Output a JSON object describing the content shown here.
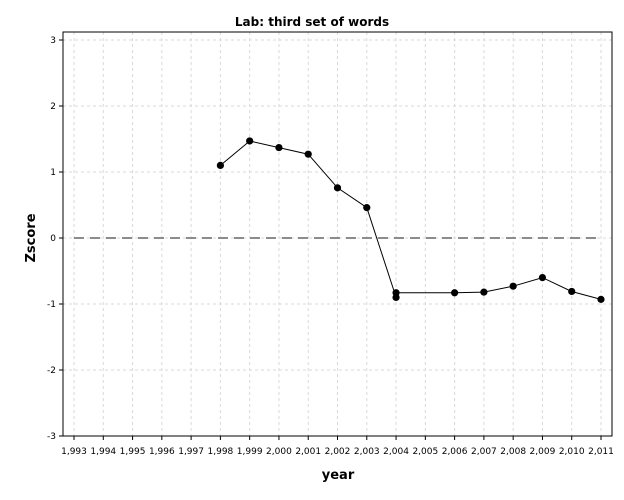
{
  "chart_data": {
    "type": "line",
    "title": "Lab: third set of words",
    "xlabel": "year",
    "ylabel": "Zscore",
    "xlim": [
      1993,
      2011
    ],
    "ylim": [
      -3,
      3
    ],
    "x_ticks": [
      1993,
      1994,
      1995,
      1996,
      1997,
      1998,
      1999,
      2000,
      2001,
      2002,
      2003,
      2004,
      2005,
      2006,
      2007,
      2008,
      2009,
      2010,
      2011
    ],
    "x_tick_labels": [
      "1,993",
      "1,994",
      "1,995",
      "1,996",
      "1,997",
      "1,998",
      "1,999",
      "2,000",
      "2,001",
      "2,002",
      "2,003",
      "2,004",
      "2,005",
      "2,006",
      "2,007",
      "2,008",
      "2,009",
      "2,010",
      "2,011"
    ],
    "y_ticks": [
      -3,
      -2,
      -1,
      0,
      1,
      2,
      3
    ],
    "y_tick_labels": [
      "-3",
      "-2",
      "-1",
      "0",
      "1",
      "2",
      "3"
    ],
    "grid": true,
    "reference_line": {
      "y": 0,
      "style": "dashed",
      "color": "#8c8c8c"
    },
    "series": [
      {
        "points": [
          {
            "x": 1998,
            "y": 1.1
          },
          {
            "x": 1999,
            "y": 1.47
          },
          {
            "x": 2000,
            "y": 1.37
          },
          {
            "x": 2001,
            "y": 1.27
          },
          {
            "x": 2002,
            "y": 0.76
          },
          {
            "x": 2003,
            "y": 0.46
          },
          {
            "x": 2004,
            "y": -0.9
          },
          {
            "x": 2004,
            "y": -0.83
          },
          {
            "x": 2006,
            "y": -0.83
          },
          {
            "x": 2007,
            "y": -0.82
          },
          {
            "x": 2008,
            "y": -0.73
          },
          {
            "x": 2009,
            "y": -0.6
          },
          {
            "x": 2010,
            "y": -0.81
          },
          {
            "x": 2011,
            "y": -0.93
          }
        ]
      }
    ],
    "colors": {
      "series": "#000000",
      "reference": "#8c8c8c",
      "grid": "#d9d9d9"
    }
  }
}
